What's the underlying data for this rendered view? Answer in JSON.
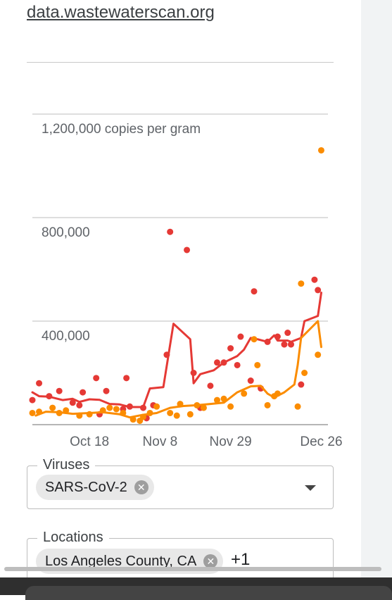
{
  "header": {
    "site": "data.wastewaterscan.org"
  },
  "chart_data": {
    "type": "line",
    "ylabel": "copies per gram",
    "y_ticks": [
      {
        "value": 400000,
        "label": "400,000"
      },
      {
        "value": 800000,
        "label": "800,000"
      },
      {
        "value": 1200000,
        "label": "1,200,000 copies per gram"
      }
    ],
    "ylim": [
      0,
      1200000
    ],
    "x_ticks": [
      {
        "x": 18,
        "label": "Oct 18"
      },
      {
        "x": 39,
        "label": "Nov 8"
      },
      {
        "x": 60,
        "label": "Nov 29"
      },
      {
        "x": 87,
        "label": "Dec 26"
      }
    ],
    "xlim": [
      1,
      89
    ],
    "grid": true,
    "colors": {
      "red": "#e53935",
      "orange": "#fb8c00"
    },
    "series": [
      {
        "color": "red",
        "line": [
          [
            1,
            125000
          ],
          [
            3,
            110000
          ],
          [
            6,
            108000
          ],
          [
            10,
            95000
          ],
          [
            13,
            100000
          ],
          [
            15,
            88000
          ],
          [
            18,
            98000
          ],
          [
            21,
            96000
          ],
          [
            24,
            80000
          ],
          [
            27,
            78000
          ],
          [
            30,
            68000
          ],
          [
            34,
            68000
          ],
          [
            36,
            140000
          ],
          [
            40,
            145000
          ],
          [
            43,
            390000
          ],
          [
            48,
            330000
          ],
          [
            49,
            160000
          ],
          [
            51,
            195000
          ],
          [
            55,
            210000
          ],
          [
            58,
            240000
          ],
          [
            62,
            265000
          ],
          [
            64,
            290000
          ],
          [
            66,
            335000
          ],
          [
            68,
            330000
          ],
          [
            71,
            320000
          ],
          [
            73,
            345000
          ],
          [
            74,
            325000
          ],
          [
            77,
            325000
          ],
          [
            78,
            320000
          ],
          [
            81,
            335000
          ],
          [
            82,
            400000
          ],
          [
            86,
            420000
          ],
          [
            87,
            510000
          ]
        ],
        "points": [
          [
            1,
            95000
          ],
          [
            3,
            160000
          ],
          [
            6,
            110000
          ],
          [
            9,
            130000
          ],
          [
            13,
            85000
          ],
          [
            15,
            75000
          ],
          [
            16,
            125000
          ],
          [
            20,
            180000
          ],
          [
            21,
            40000
          ],
          [
            23,
            130000
          ],
          [
            28,
            60000
          ],
          [
            29,
            180000
          ],
          [
            30,
            70000
          ],
          [
            34,
            65000
          ],
          [
            35,
            25000
          ],
          [
            37,
            75000
          ],
          [
            41,
            270000
          ],
          [
            42,
            745000
          ],
          [
            47,
            675000
          ],
          [
            49,
            200000
          ],
          [
            51,
            65000
          ],
          [
            54,
            150000
          ],
          [
            56,
            240000
          ],
          [
            58,
            240000
          ],
          [
            60,
            295000
          ],
          [
            62,
            230000
          ],
          [
            63,
            340000
          ],
          [
            66,
            170000
          ],
          [
            67,
            515000
          ],
          [
            69,
            140000
          ],
          [
            71,
            320000
          ],
          [
            74,
            340000
          ],
          [
            76,
            310000
          ],
          [
            77,
            355000
          ],
          [
            78,
            310000
          ],
          [
            81,
            155000
          ],
          [
            85,
            560000
          ],
          [
            86,
            520000
          ]
        ]
      },
      {
        "color": "orange",
        "line": [
          [
            2,
            35000
          ],
          [
            5,
            50000
          ],
          [
            9,
            48000
          ],
          [
            13,
            42000
          ],
          [
            18,
            45000
          ],
          [
            22,
            48000
          ],
          [
            27,
            40000
          ],
          [
            30,
            28000
          ],
          [
            34,
            38000
          ],
          [
            38,
            45000
          ],
          [
            42,
            65000
          ],
          [
            46,
            72000
          ],
          [
            50,
            75000
          ],
          [
            54,
            80000
          ],
          [
            58,
            85000
          ],
          [
            62,
            125000
          ],
          [
            66,
            148000
          ],
          [
            69,
            150000
          ],
          [
            71,
            120000
          ],
          [
            73,
            105000
          ],
          [
            76,
            125000
          ],
          [
            79,
            155000
          ],
          [
            80,
            230000
          ],
          [
            81,
            335000
          ],
          [
            86,
            400000
          ],
          [
            87,
            300000
          ]
        ],
        "points": [
          [
            1,
            45000
          ],
          [
            3,
            50000
          ],
          [
            7,
            65000
          ],
          [
            9,
            45000
          ],
          [
            11,
            55000
          ],
          [
            15,
            35000
          ],
          [
            18,
            40000
          ],
          [
            22,
            55000
          ],
          [
            24,
            65000
          ],
          [
            26,
            60000
          ],
          [
            28,
            45000
          ],
          [
            31,
            20000
          ],
          [
            33,
            15000
          ],
          [
            34,
            30000
          ],
          [
            36,
            45000
          ],
          [
            38,
            70000
          ],
          [
            42,
            45000
          ],
          [
            44,
            35000
          ],
          [
            45,
            80000
          ],
          [
            48,
            40000
          ],
          [
            50,
            75000
          ],
          [
            52,
            65000
          ],
          [
            56,
            95000
          ],
          [
            58,
            100000
          ],
          [
            60,
            70000
          ],
          [
            64,
            120000
          ],
          [
            67,
            330000
          ],
          [
            68,
            230000
          ],
          [
            71,
            75000
          ],
          [
            73,
            110000
          ],
          [
            74,
            120000
          ],
          [
            80,
            70000
          ],
          [
            81,
            545000
          ],
          [
            82,
            200000
          ],
          [
            86,
            270000
          ],
          [
            87,
            1060000
          ]
        ]
      }
    ]
  },
  "filters": {
    "viruses": {
      "label": "Viruses",
      "chips": [
        "SARS-CoV-2"
      ]
    },
    "locations": {
      "label": "Locations",
      "chips": [
        "Los Angeles County, CA"
      ],
      "more": "+1"
    }
  }
}
